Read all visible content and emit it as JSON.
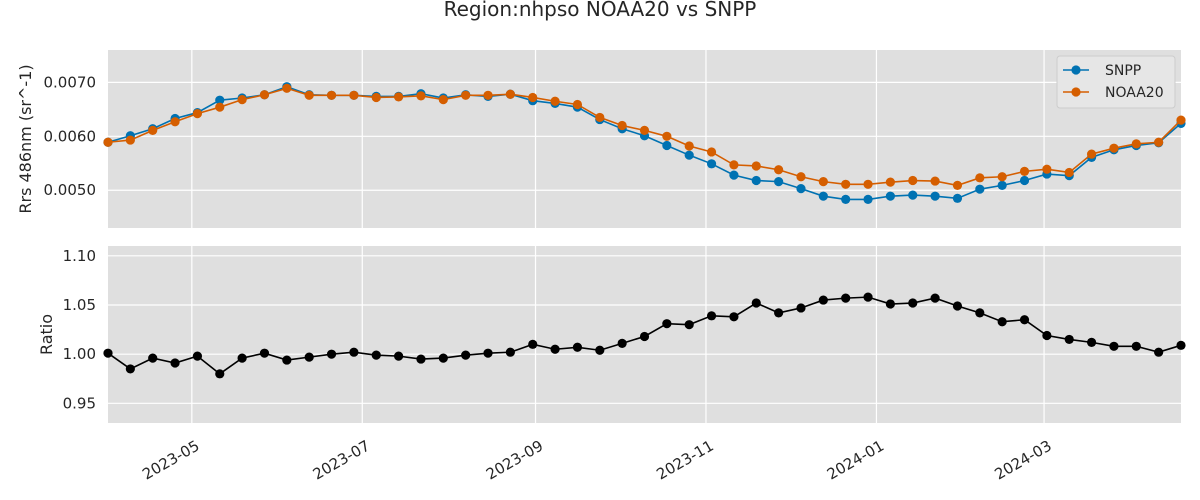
{
  "chart_data": {
    "type": "line",
    "title": "Region:nhpso NOAA20 vs SNPP",
    "x_dates": [
      "2023-04-01",
      "2023-04-09",
      "2023-04-17",
      "2023-04-25",
      "2023-05-03",
      "2023-05-11",
      "2023-05-19",
      "2023-05-27",
      "2023-06-04",
      "2023-06-12",
      "2023-06-20",
      "2023-06-28",
      "2023-07-06",
      "2023-07-14",
      "2023-07-22",
      "2023-07-30",
      "2023-08-07",
      "2023-08-15",
      "2023-08-23",
      "2023-08-31",
      "2023-09-08",
      "2023-09-16",
      "2023-09-24",
      "2023-10-02",
      "2023-10-10",
      "2023-10-18",
      "2023-10-26",
      "2023-11-03",
      "2023-11-11",
      "2023-11-19",
      "2023-11-27",
      "2023-12-05",
      "2023-12-13",
      "2023-12-21",
      "2023-12-29",
      "2024-01-06",
      "2024-01-14",
      "2024-01-22",
      "2024-01-30",
      "2024-02-07",
      "2024-02-15",
      "2024-02-23",
      "2024-03-02",
      "2024-03-10",
      "2024-03-18",
      "2024-03-26",
      "2024-04-03",
      "2024-04-11",
      "2024-04-19"
    ],
    "panels": [
      {
        "ylabel": "Rrs 486nm (sr^-1)",
        "ylim": [
          0.0043,
          0.0076
        ],
        "yticks": [
          "0.0050",
          "0.0060",
          "0.0070"
        ],
        "ytick_values": [
          0.005,
          0.006,
          0.007
        ],
        "legend_position": "top-right",
        "series": [
          {
            "name": "SNPP",
            "color": "#0072B2",
            "values": [
              0.00589,
              0.00601,
              0.00614,
              0.00633,
              0.00644,
              0.00667,
              0.00671,
              0.00677,
              0.00692,
              0.00677,
              0.00676,
              0.00676,
              0.00674,
              0.00674,
              0.00679,
              0.00671,
              0.00677,
              0.00674,
              0.00678,
              0.00666,
              0.00661,
              0.00654,
              0.00631,
              0.00614,
              0.00601,
              0.00583,
              0.00565,
              0.00549,
              0.00528,
              0.00518,
              0.00516,
              0.00503,
              0.00489,
              0.00483,
              0.00483,
              0.00489,
              0.00491,
              0.00489,
              0.00485,
              0.00502,
              0.00509,
              0.00518,
              0.0053,
              0.00527,
              0.00561,
              0.00575,
              0.00583,
              0.00588,
              0.00624
            ]
          },
          {
            "name": "NOAA20",
            "color": "#D55E00",
            "values": [
              0.00589,
              0.00593,
              0.00611,
              0.00627,
              0.00642,
              0.00654,
              0.00668,
              0.00677,
              0.00689,
              0.00676,
              0.00676,
              0.00676,
              0.00672,
              0.00673,
              0.00675,
              0.00668,
              0.00676,
              0.00676,
              0.00678,
              0.00672,
              0.00665,
              0.00659,
              0.00635,
              0.0062,
              0.00611,
              0.006,
              0.00582,
              0.00571,
              0.00547,
              0.00545,
              0.00538,
              0.00525,
              0.00516,
              0.00511,
              0.00511,
              0.00515,
              0.00518,
              0.00517,
              0.00509,
              0.00523,
              0.00525,
              0.00535,
              0.00539,
              0.00533,
              0.00567,
              0.00578,
              0.00586,
              0.00589,
              0.0063
            ]
          }
        ]
      },
      {
        "ylabel": "Ratio",
        "ylim": [
          0.93,
          1.11
        ],
        "yticks": [
          "0.95",
          "1.00",
          "1.05",
          "1.10"
        ],
        "ytick_values": [
          0.95,
          1.0,
          1.05,
          1.1
        ],
        "series": [
          {
            "name": "",
            "color": "#000000",
            "values": [
              1.001,
              0.985,
              0.996,
              0.991,
              0.998,
              0.98,
              0.996,
              1.001,
              0.994,
              0.997,
              1.0,
              1.002,
              0.999,
              0.998,
              0.995,
              0.996,
              0.999,
              1.001,
              1.002,
              1.01,
              1.005,
              1.007,
              1.004,
              1.011,
              1.018,
              1.031,
              1.03,
              1.039,
              1.038,
              1.052,
              1.042,
              1.047,
              1.055,
              1.057,
              1.058,
              1.051,
              1.052,
              1.057,
              1.049,
              1.042,
              1.033,
              1.035,
              1.019,
              1.015,
              1.012,
              1.008,
              1.008,
              1.002,
              1.009
            ]
          }
        ]
      }
    ],
    "xticks": [
      {
        "label": "2023-05",
        "date": "2023-05-01"
      },
      {
        "label": "2023-07",
        "date": "2023-07-01"
      },
      {
        "label": "2023-09",
        "date": "2023-09-01"
      },
      {
        "label": "2023-11",
        "date": "2023-11-01"
      },
      {
        "label": "2024-01",
        "date": "2024-01-01"
      },
      {
        "label": "2024-03",
        "date": "2024-03-01"
      }
    ],
    "xlim": [
      "2023-04-01",
      "2024-04-19"
    ],
    "grid": true,
    "background_color": "#DFDFDF"
  }
}
